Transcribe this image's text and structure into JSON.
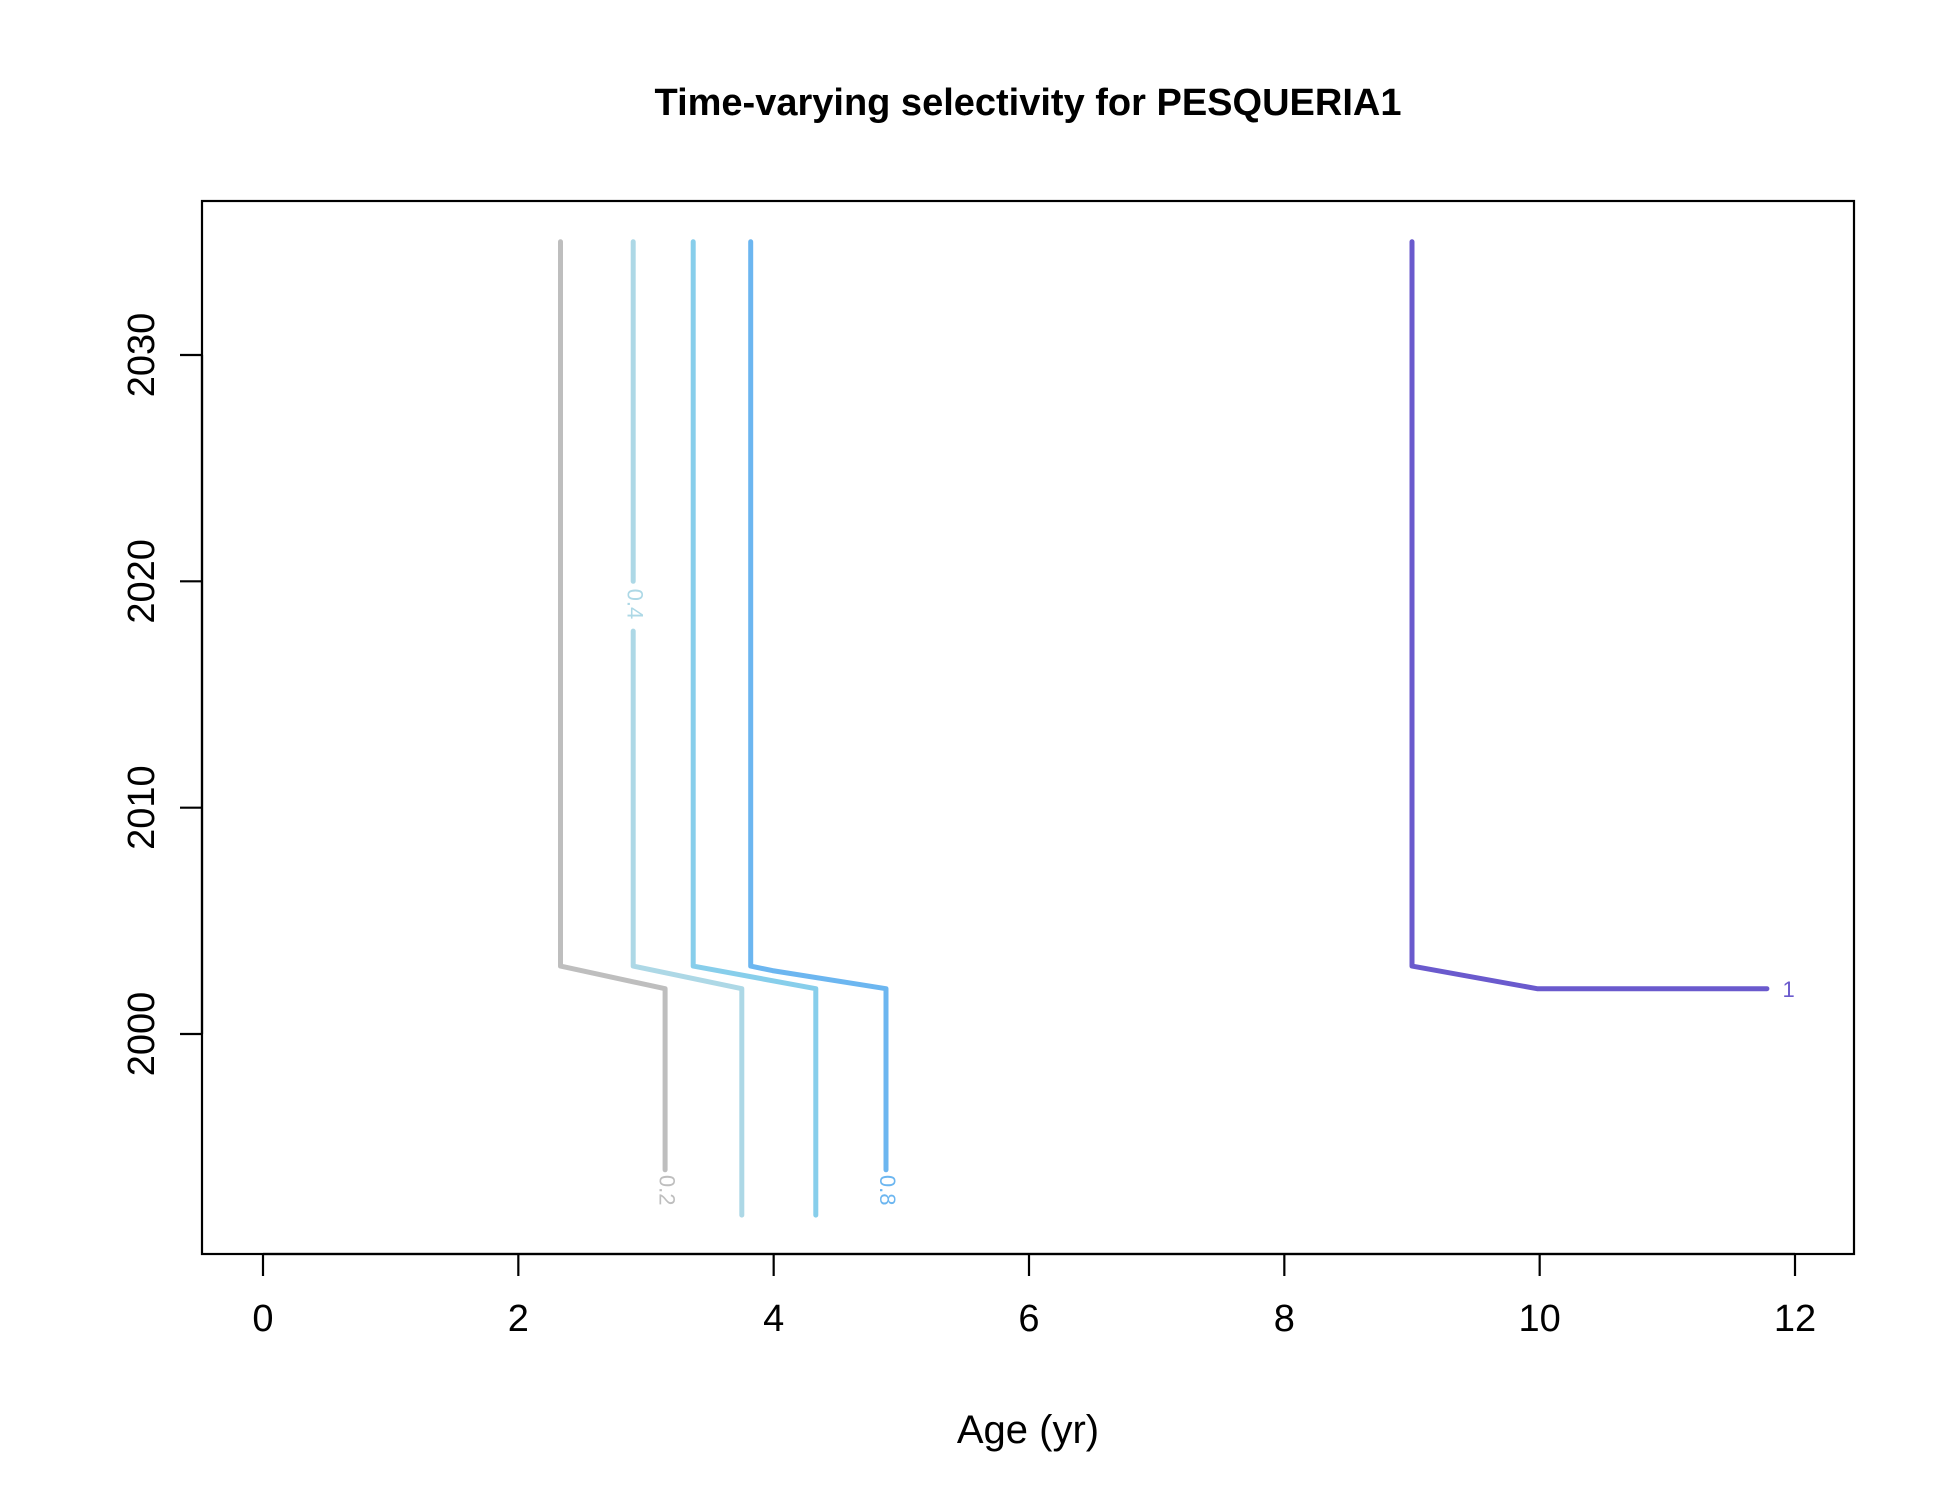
{
  "chart_data": {
    "type": "line",
    "title": "Time-varying selectivity for PESQUERIA1",
    "xlabel": "Age (yr)",
    "ylabel": "",
    "xlim": [
      -0.5,
      12.5
    ],
    "ylim": [
      1991,
      2036
    ],
    "xticks": [
      0,
      2,
      4,
      6,
      8,
      10,
      12
    ],
    "yticks": [
      2000,
      2010,
      2020,
      2030
    ],
    "grid": false,
    "contours": [
      {
        "level": "0.2",
        "color": "#bebebe",
        "label_at": [
          3.15,
          1993.1
        ],
        "points": [
          [
            2.33,
            2035
          ],
          [
            2.33,
            2003
          ],
          [
            3.15,
            2002
          ],
          [
            3.15,
            1994
          ]
        ]
      },
      {
        "level": "0.4",
        "color": "#add8e6",
        "label_at": [
          2.9,
          2019
        ],
        "points": [
          [
            2.9,
            2035
          ],
          [
            2.9,
            2020
          ],
          null,
          [
            2.9,
            2017.8
          ],
          [
            2.9,
            2003
          ],
          [
            3.75,
            2002
          ],
          [
            3.75,
            1992
          ]
        ]
      },
      {
        "level": "",
        "color": "#87ceeb",
        "points": [
          [
            3.37,
            2035
          ],
          [
            3.37,
            2003
          ],
          [
            4.33,
            2002
          ],
          [
            4.33,
            1992
          ]
        ]
      },
      {
        "level": "",
        "color": "#6cb6f0",
        "points": [
          [
            3.82,
            2035
          ],
          [
            3.82,
            2003
          ],
          [
            3.99,
            2002.8
          ],
          [
            4.88,
            2002
          ],
          [
            4.88,
            1994
          ]
        ]
      },
      {
        "level": "0.8",
        "color": "#6cb6f0",
        "label_at": [
          4.88,
          1993.1
        ],
        "points": []
      },
      {
        "level": "1",
        "color": "#6a5acd",
        "label_at": [
          11.95,
          2001.9
        ],
        "points": [
          [
            9.0,
            2035
          ],
          [
            9.0,
            2003
          ],
          [
            9.98,
            2002
          ],
          [
            11.78,
            2002
          ]
        ]
      }
    ]
  }
}
